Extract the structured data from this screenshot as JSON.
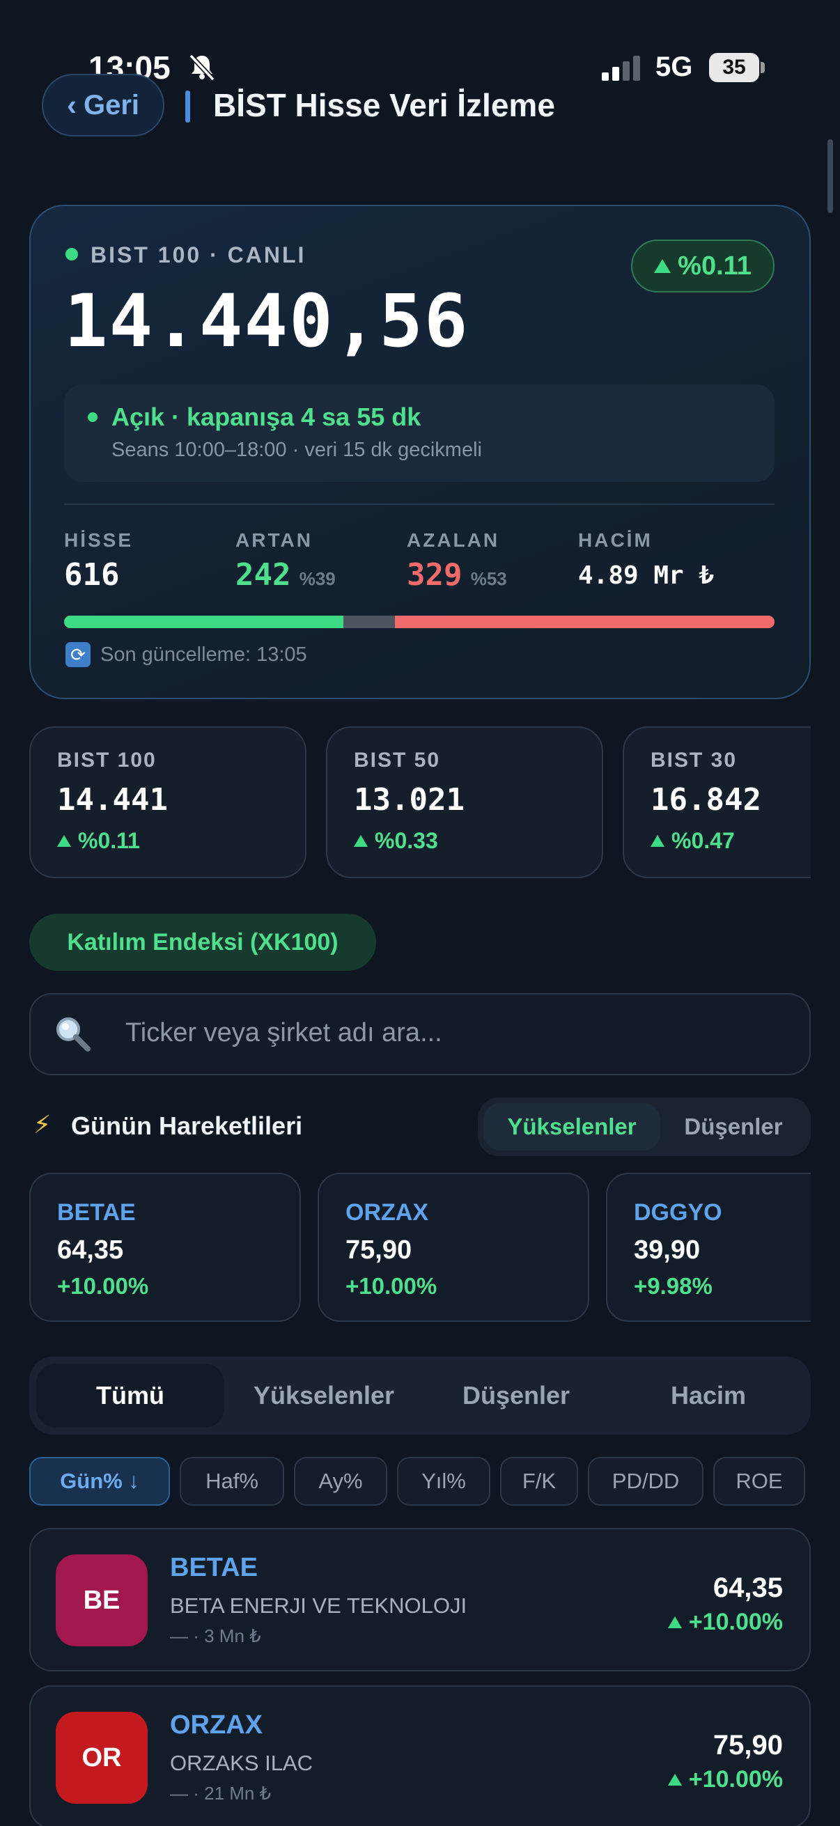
{
  "status_bar": {
    "time": "13:05",
    "network": "5G",
    "battery": "35"
  },
  "header": {
    "back_label": "Geri",
    "title": "BİST Hisse Veri İzleme"
  },
  "hero": {
    "live_label": "BIST 100 · CANLI",
    "change": "%0.11",
    "value": "14.440,56",
    "session_main": "Açık · kapanışa 4 sa 55 dk",
    "session_sub": "Seans 10:00–18:00 · veri 15 dk gecikmeli",
    "stats": {
      "hisse_label": "HİSSE",
      "hisse_value": "616",
      "artan_label": "ARTAN",
      "artan_value": "242",
      "artan_pct": "%39",
      "azalan_label": "AZALAN",
      "azalan_value": "329",
      "azalan_pct": "%53",
      "hacim_label": "HACİM",
      "hacim_value": "4.89 Mr ₺"
    },
    "breadth": {
      "up": 242,
      "flat": 45,
      "down": 329
    },
    "last_update": "Son güncelleme: 13:05",
    "colors": {
      "up": "#3ddc84",
      "down": "#f26b6b",
      "accent": "#5ea3ec"
    }
  },
  "indices": [
    {
      "name": "BIST 100",
      "value": "14.441",
      "change": "%0.11"
    },
    {
      "name": "BIST 50",
      "value": "13.021",
      "change": "%0.33"
    },
    {
      "name": "BIST 30",
      "value": "16.842",
      "change": "%0.47"
    }
  ],
  "katilim_label": "Katılım Endeksi (XK100)",
  "search": {
    "placeholder": "Ticker veya şirket adı ara..."
  },
  "movers": {
    "title": "Günün Hareketlileri",
    "toggle_up": "Yükselenler",
    "toggle_down": "Düşenler",
    "items": [
      {
        "ticker": "BETAE",
        "price": "64,35",
        "change": "+10.00%"
      },
      {
        "ticker": "ORZAX",
        "price": "75,90",
        "change": "+10.00%"
      },
      {
        "ticker": "DGGYO",
        "price": "39,90",
        "change": "+9.98%"
      }
    ]
  },
  "tabs": [
    "Tümü",
    "Yükselenler",
    "Düşenler",
    "Hacim"
  ],
  "sort_chips": [
    "Gün% ↓",
    "Haf%",
    "Ay%",
    "Yıl%",
    "F/K",
    "PD/DD",
    "ROE"
  ],
  "stocks": [
    {
      "initials": "BE",
      "ticker": "BETAE",
      "name": "BETA ENERJI VE TEKNOLOJI",
      "meta": "— · 3 Mn ₺",
      "price": "64,35",
      "change": "+10.00%",
      "color": "#a3174f"
    },
    {
      "initials": "OR",
      "ticker": "ORZAX",
      "name": "ORZAKS ILAC",
      "meta": "— · 21 Mn ₺",
      "price": "75,90",
      "change": "+10.00%",
      "color": "#c4191f"
    }
  ]
}
